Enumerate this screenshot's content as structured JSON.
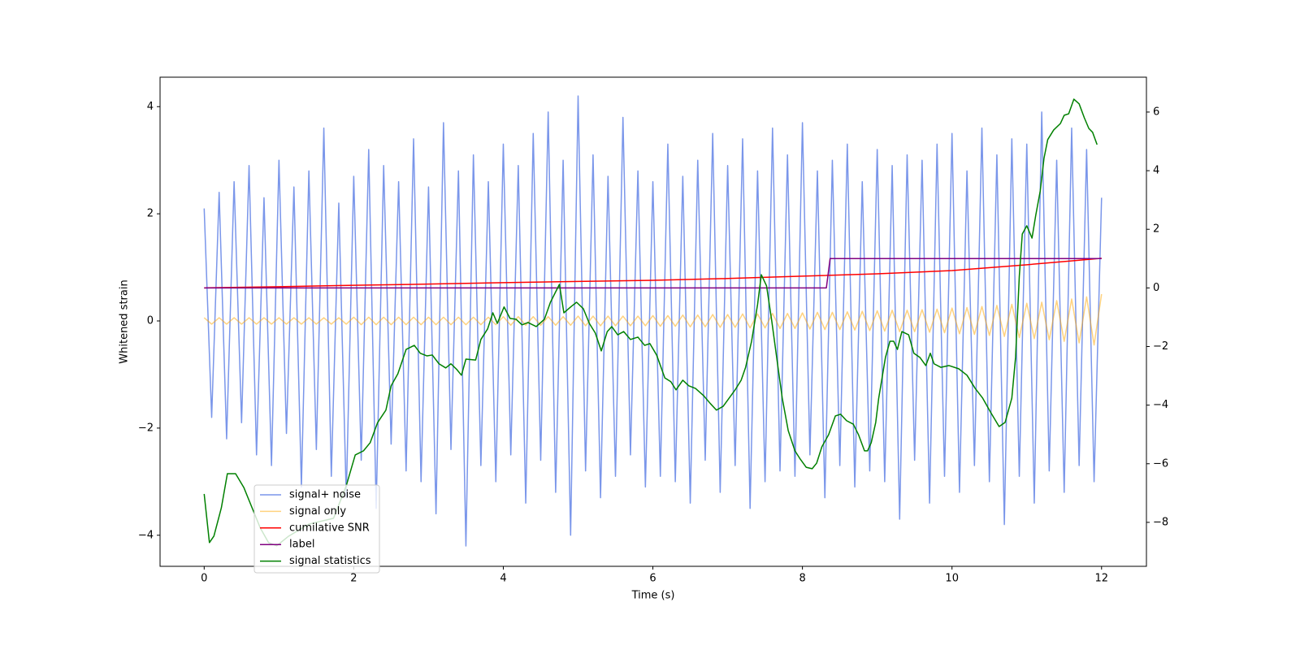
{
  "chart_data": {
    "type": "line",
    "xlabel": "Time (s)",
    "ylabel": "Whitened strain",
    "xlim": [
      -0.59,
      12.6
    ],
    "ylim": [
      -4.58,
      4.55
    ],
    "y2lim": [
      -9.5,
      7.19
    ],
    "xticks": [
      0,
      2,
      4,
      6,
      8,
      10,
      12
    ],
    "yticks": [
      {
        "value": -4,
        "label": "−4"
      },
      {
        "value": -2,
        "label": "−2"
      },
      0,
      2,
      4
    ],
    "y2ticks": [
      {
        "value": -8,
        "label": "−8"
      },
      {
        "value": -6,
        "label": "−6"
      },
      {
        "value": -4,
        "label": "−4"
      },
      {
        "value": -2,
        "label": "−2"
      },
      0,
      2,
      4,
      6
    ],
    "grid": false,
    "legend": "lower left",
    "x": [
      0,
      0.1,
      0.2,
      0.3,
      0.4,
      0.5,
      0.6,
      0.7,
      0.8,
      0.9,
      1,
      1.1,
      1.2,
      1.3,
      1.4,
      1.5,
      1.6,
      1.7,
      1.8,
      1.9,
      2,
      2.1,
      2.2,
      2.3,
      2.4,
      2.5,
      2.6,
      2.7,
      2.8,
      2.9,
      3,
      3.1,
      3.2,
      3.3,
      3.4,
      3.5,
      3.6,
      3.7,
      3.8,
      3.9,
      4,
      4.1,
      4.2,
      4.3,
      4.4,
      4.5,
      4.6,
      4.7,
      4.8,
      4.9,
      5,
      5.1,
      5.2,
      5.3,
      5.4,
      5.5,
      5.6,
      5.7,
      5.8,
      5.9,
      6,
      6.1,
      6.2,
      6.3,
      6.4,
      6.5,
      6.6,
      6.7,
      6.8,
      6.9,
      7,
      7.1,
      7.2,
      7.3,
      7.4,
      7.5,
      7.6,
      7.7,
      7.8,
      7.9,
      8,
      8.1,
      8.2,
      8.3,
      8.4,
      8.5,
      8.6,
      8.7,
      8.8,
      8.9,
      9,
      9.1,
      9.2,
      9.3,
      9.4,
      9.5,
      9.6,
      9.7,
      9.8,
      9.9,
      10,
      10.1,
      10.2,
      10.3,
      10.4,
      10.5,
      10.6,
      10.7,
      10.8,
      10.9,
      11,
      11.1,
      11.2,
      11.3,
      11.4,
      11.5,
      11.6,
      11.7,
      11.8,
      11.9,
      12
    ],
    "series": [
      {
        "name": "signal+ noise",
        "color": "#4169e1",
        "alpha": 0.7,
        "axis": "y",
        "values": [
          2.1,
          -1.8,
          2.4,
          -2.2,
          2.6,
          -1.9,
          2.9,
          -2.5,
          2.3,
          -2.7,
          3.0,
          -2.1,
          2.5,
          -3.1,
          2.8,
          -2.4,
          3.6,
          -2.9,
          2.2,
          -3.3,
          2.7,
          -2.6,
          3.2,
          -3.5,
          2.9,
          -2.3,
          2.6,
          -2.8,
          3.4,
          -3.0,
          2.5,
          -3.6,
          3.7,
          -2.4,
          2.8,
          -4.2,
          3.1,
          -2.7,
          2.6,
          -3.0,
          3.3,
          -2.5,
          2.9,
          -3.4,
          3.5,
          -2.6,
          3.9,
          -3.2,
          3.0,
          -4.0,
          4.2,
          -2.8,
          3.1,
          -3.3,
          2.7,
          -2.9,
          3.8,
          -2.5,
          2.8,
          -3.1,
          2.6,
          -2.9,
          3.3,
          -3.0,
          2.7,
          -3.4,
          3.0,
          -2.6,
          3.5,
          -3.2,
          2.9,
          -2.7,
          3.4,
          -3.5,
          2.8,
          -3.0,
          3.6,
          -2.8,
          3.1,
          -2.9,
          3.7,
          -2.5,
          2.8,
          -3.3,
          3.0,
          -2.7,
          3.3,
          -3.1,
          2.6,
          -2.8,
          3.2,
          -3.0,
          2.9,
          -3.7,
          3.1,
          -2.6,
          3.0,
          -3.4,
          3.3,
          -2.9,
          3.5,
          -3.2,
          2.8,
          -2.7,
          3.6,
          -3.0,
          3.1,
          -3.8,
          3.4,
          -2.9,
          3.3,
          -3.4,
          3.9,
          -2.8,
          3.0,
          -3.2,
          3.6,
          -2.7,
          3.2,
          -3.0,
          2.3
        ]
      },
      {
        "name": "signal only",
        "color": "#ffa500",
        "alpha": 0.5,
        "axis": "y",
        "values": [
          0.06,
          -0.06,
          0.06,
          -0.06,
          0.06,
          -0.06,
          0.06,
          -0.06,
          0.06,
          -0.06,
          0.06,
          -0.06,
          0.06,
          -0.06,
          0.06,
          -0.06,
          0.06,
          -0.06,
          0.06,
          -0.06,
          0.07,
          -0.07,
          0.07,
          -0.07,
          0.07,
          -0.07,
          0.07,
          -0.07,
          0.07,
          -0.07,
          0.07,
          -0.07,
          0.07,
          -0.07,
          0.07,
          -0.07,
          0.07,
          -0.07,
          0.07,
          -0.07,
          0.08,
          -0.08,
          0.08,
          -0.08,
          0.08,
          -0.08,
          0.08,
          -0.08,
          0.08,
          -0.08,
          0.09,
          -0.09,
          0.09,
          -0.09,
          0.09,
          -0.09,
          0.09,
          -0.09,
          0.09,
          -0.09,
          0.1,
          -0.1,
          0.1,
          -0.1,
          0.11,
          -0.11,
          0.11,
          -0.11,
          0.12,
          -0.12,
          0.12,
          -0.12,
          0.13,
          -0.13,
          0.13,
          -0.13,
          0.14,
          -0.14,
          0.14,
          -0.14,
          0.15,
          -0.15,
          0.16,
          -0.16,
          0.16,
          -0.16,
          0.17,
          -0.17,
          0.18,
          -0.18,
          0.19,
          -0.19,
          0.2,
          -0.2,
          0.2,
          -0.2,
          0.21,
          -0.21,
          0.22,
          -0.22,
          0.24,
          -0.24,
          0.25,
          -0.25,
          0.27,
          -0.27,
          0.29,
          -0.29,
          0.31,
          -0.31,
          0.33,
          -0.33,
          0.35,
          -0.35,
          0.38,
          -0.38,
          0.41,
          -0.41,
          0.45,
          -0.45,
          0.5
        ]
      },
      {
        "name": "cumilative SNR",
        "color": "#ff0000",
        "alpha": 1,
        "axis": "y2",
        "x": [
          0,
          1,
          2,
          3,
          4,
          5,
          6,
          7,
          8,
          9,
          10,
          11,
          11.5,
          12
        ],
        "values": [
          0,
          0.04,
          0.09,
          0.13,
          0.18,
          0.22,
          0.26,
          0.32,
          0.4,
          0.48,
          0.59,
          0.79,
          0.9,
          1.01
        ]
      },
      {
        "name": "label",
        "color": "#800080",
        "alpha": 1,
        "axis": "y2",
        "x": [
          0,
          8.32,
          8.37,
          12
        ],
        "values": [
          0,
          0,
          1,
          1
        ]
      },
      {
        "name": "signal statistics",
        "color": "#008000",
        "alpha": 1,
        "axis": "y2",
        "x": [
          0,
          0.07,
          0.13,
          0.23,
          0.31,
          0.42,
          0.53,
          0.64,
          0.75,
          0.86,
          0.97,
          1.13,
          1.4,
          1.73,
          1.9,
          2.02,
          2.13,
          2.22,
          2.32,
          2.43,
          2.5,
          2.59,
          2.7,
          2.81,
          2.89,
          2.98,
          3.05,
          3.14,
          3.23,
          3.3,
          3.38,
          3.44,
          3.5,
          3.63,
          3.7,
          3.79,
          3.86,
          3.92,
          4.01,
          4.09,
          4.17,
          4.25,
          4.33,
          4.44,
          4.55,
          4.63,
          4.75,
          4.81,
          4.91,
          4.98,
          5.07,
          5.15,
          5.23,
          5.31,
          5.39,
          5.45,
          5.53,
          5.61,
          5.7,
          5.8,
          5.89,
          5.96,
          6.05,
          6.16,
          6.24,
          6.31,
          6.4,
          6.48,
          6.57,
          6.68,
          6.77,
          6.85,
          6.94,
          7.02,
          7.1,
          7.18,
          7.24,
          7.32,
          7.4,
          7.45,
          7.52,
          7.59,
          7.67,
          7.73,
          7.81,
          7.9,
          7.97,
          8.05,
          8.13,
          8.19,
          8.26,
          8.35,
          8.44,
          8.51,
          8.59,
          8.68,
          8.75,
          8.83,
          8.87,
          8.92,
          8.98,
          9.02,
          9.11,
          9.17,
          9.22,
          9.27,
          9.33,
          9.42,
          9.49,
          9.57,
          9.65,
          9.71,
          9.76,
          9.85,
          9.96,
          10.09,
          10.2,
          10.31,
          10.41,
          10.52,
          10.63,
          10.71,
          10.8,
          10.85,
          10.9,
          10.94,
          11,
          11.07,
          11.12,
          11.18,
          11.23,
          11.28,
          11.36,
          11.45,
          11.5,
          11.56,
          11.63,
          11.7,
          11.77,
          11.83,
          11.88,
          11.94
        ],
        "values": [
          -7.03,
          -8.69,
          -8.47,
          -7.5,
          -6.34,
          -6.34,
          -6.81,
          -7.5,
          -8.19,
          -8.69,
          -8.8,
          -8.47,
          -8.06,
          -7.86,
          -6.75,
          -5.7,
          -5.56,
          -5.28,
          -4.59,
          -4.17,
          -3.34,
          -2.93,
          -2.1,
          -1.96,
          -2.23,
          -2.32,
          -2.29,
          -2.59,
          -2.73,
          -2.59,
          -2.79,
          -2.98,
          -2.43,
          -2.46,
          -1.76,
          -1.4,
          -0.85,
          -1.21,
          -0.65,
          -1.04,
          -1.07,
          -1.26,
          -1.18,
          -1.32,
          -1.07,
          -0.49,
          0.12,
          -0.85,
          -0.63,
          -0.49,
          -0.71,
          -1.21,
          -1.54,
          -2.15,
          -1.49,
          -1.32,
          -1.6,
          -1.49,
          -1.76,
          -1.68,
          -1.96,
          -1.9,
          -2.29,
          -3.07,
          -3.2,
          -3.48,
          -3.15,
          -3.34,
          -3.43,
          -3.68,
          -3.95,
          -4.17,
          -4.04,
          -3.76,
          -3.48,
          -3.15,
          -2.71,
          -1.82,
          -0.57,
          0.45,
          0.07,
          -1.13,
          -2.65,
          -3.76,
          -4.87,
          -5.56,
          -5.84,
          -6.12,
          -6.17,
          -5.98,
          -5.42,
          -5.01,
          -4.37,
          -4.31,
          -4.53,
          -4.65,
          -5.01,
          -5.56,
          -5.56,
          -5.28,
          -4.59,
          -3.76,
          -2.37,
          -1.82,
          -1.82,
          -2.1,
          -1.49,
          -1.6,
          -2.23,
          -2.37,
          -2.65,
          -2.23,
          -2.59,
          -2.71,
          -2.65,
          -2.76,
          -2.98,
          -3.43,
          -3.76,
          -4.26,
          -4.73,
          -4.59,
          -3.76,
          -2.37,
          0.4,
          1.84,
          2.12,
          1.7,
          2.48,
          3.31,
          4.42,
          5.06,
          5.39,
          5.61,
          5.89,
          5.94,
          6.44,
          6.28,
          5.8,
          5.44,
          5.31,
          4.89
        ]
      }
    ]
  }
}
